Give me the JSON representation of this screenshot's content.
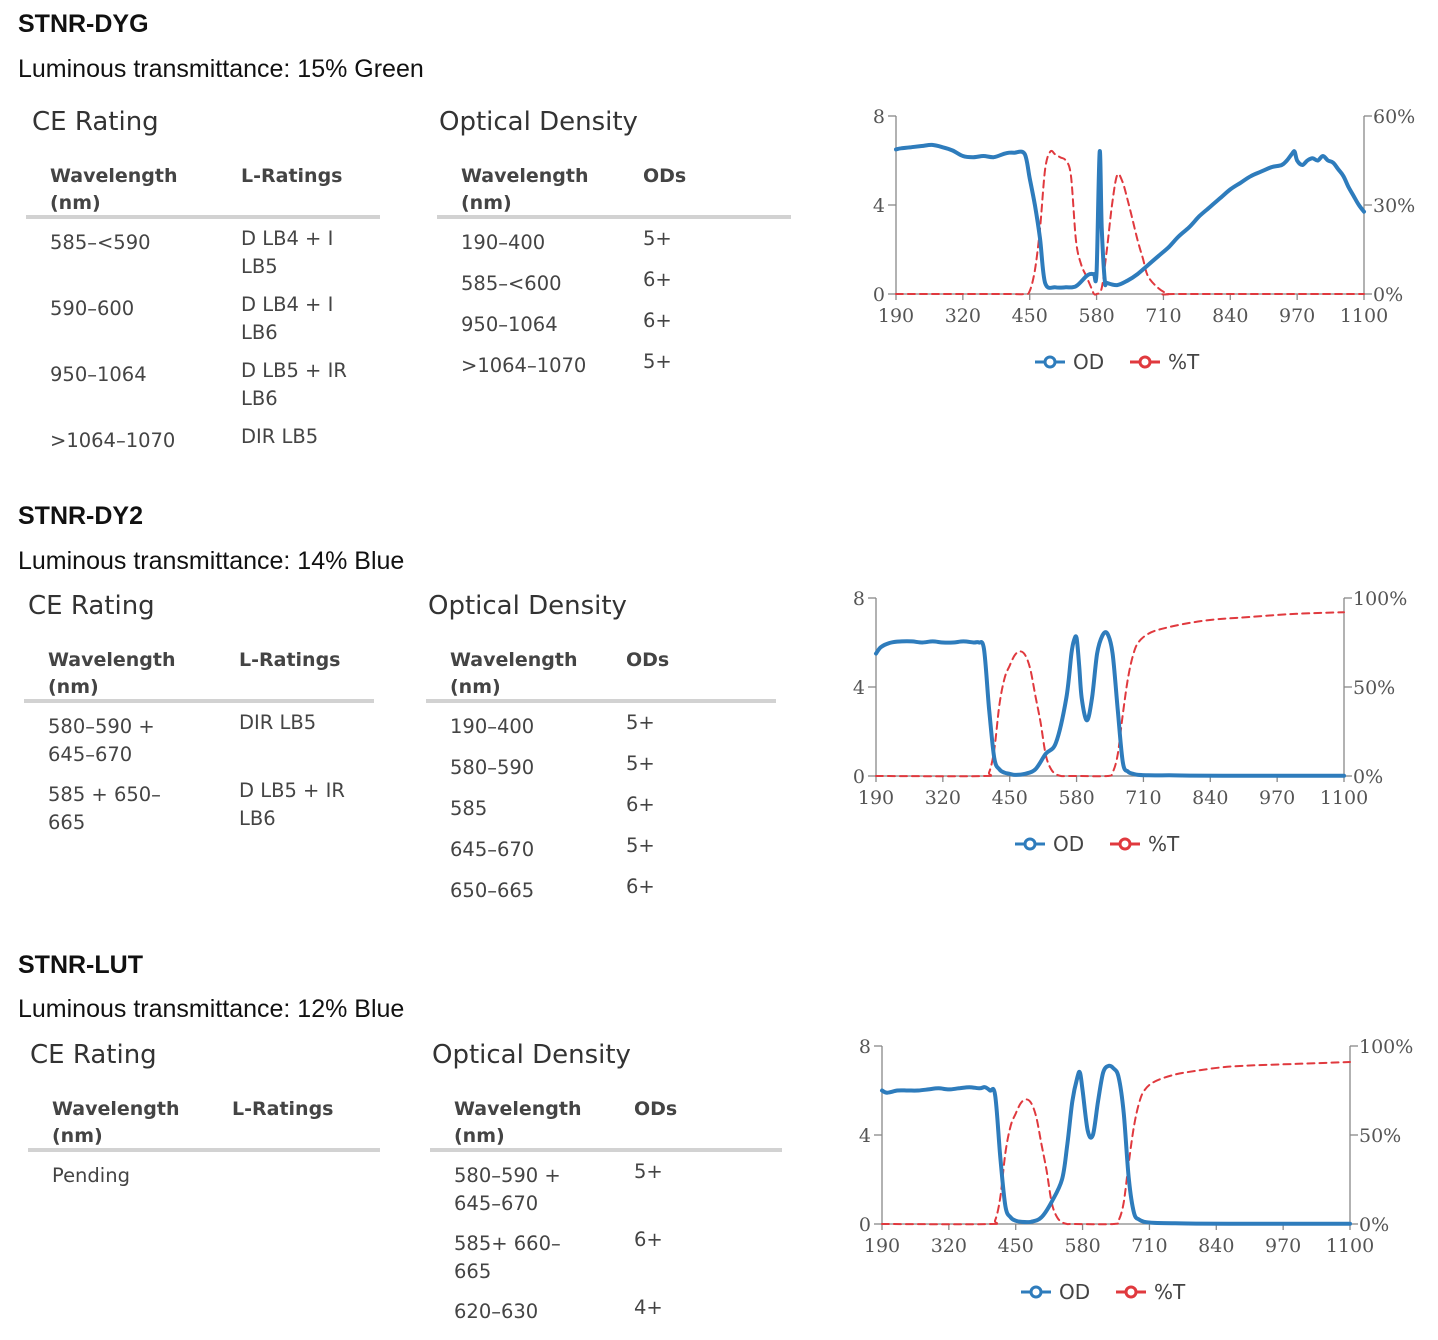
{
  "products": [
    {
      "name": "STNR-DYG",
      "transmittance": "Luminous transmittance: 15% Green",
      "ce": {
        "title": "CE Rating",
        "headers": [
          "Wavelength\n(nm)",
          "L-Ratings"
        ],
        "rows": [
          [
            "585–<590",
            "D LB4 + I\nLB5"
          ],
          [
            "590–600",
            "D LB4 + I\nLB6"
          ],
          [
            "950–1064",
            "D LB5 + IR\nLB6"
          ],
          [
            ">1064–1070",
            "DIR LB5"
          ]
        ]
      },
      "od": {
        "title": "Optical Density",
        "headers": [
          "Wavelength\n(nm)",
          "ODs"
        ],
        "rows": [
          [
            "190–400",
            "5+"
          ],
          [
            "585–<600",
            "6+"
          ],
          [
            "950–1064",
            "6+"
          ],
          [
            ">1064–1070",
            "5+"
          ]
        ]
      }
    },
    {
      "name": "STNR-DY2",
      "transmittance": "Luminous transmittance: 14% Blue",
      "ce": {
        "title": "CE Rating",
        "headers": [
          "Wavelength\n(nm)",
          "L-Ratings"
        ],
        "rows": [
          [
            "580–590 +\n645–670",
            "DIR LB5"
          ],
          [
            "585 + 650–\n665",
            "D LB5 + IR\nLB6"
          ]
        ]
      },
      "od": {
        "title": "Optical Density",
        "headers": [
          "Wavelength\n(nm)",
          "ODs"
        ],
        "rows": [
          [
            "190–400",
            "5+"
          ],
          [
            "580–590",
            "5+"
          ],
          [
            "585",
            "6+"
          ],
          [
            "645–670",
            "5+"
          ],
          [
            "650–665",
            "6+"
          ]
        ]
      }
    },
    {
      "name": "STNR-LUT",
      "transmittance": "Luminous transmittance: 12% Blue",
      "ce": {
        "title": "CE Rating",
        "headers": [
          "Wavelength\n(nm)",
          "L-Ratings"
        ],
        "rows": [
          [
            "Pending",
            ""
          ]
        ]
      },
      "od": {
        "title": "Optical Density",
        "headers": [
          "Wavelength\n(nm)",
          "ODs"
        ],
        "rows": [
          [
            "580–590 +\n645–670",
            "5+"
          ],
          [
            "585+ 660–\n665",
            "6+"
          ],
          [
            "620–630",
            "4+"
          ]
        ]
      }
    }
  ],
  "colors": {
    "od": "#2e7cbc",
    "t": "#e0393e",
    "axis": "#888888"
  },
  "chart_data": [
    {
      "type": "line",
      "xlim": [
        190,
        1100
      ],
      "xticks": [
        190,
        320,
        450,
        580,
        710,
        840,
        970,
        1100
      ],
      "y_left": {
        "lim": [
          0,
          8
        ],
        "ticks": [
          "0",
          "4",
          "8"
        ]
      },
      "y_right": {
        "lim": [
          0,
          60
        ],
        "ticks": [
          "0%",
          "30%",
          "60%"
        ]
      },
      "legend": [
        "OD",
        "%T"
      ],
      "legend_position": "bottom",
      "series": [
        {
          "name": "OD",
          "axis": "left",
          "style": "solid",
          "x": [
            190,
            200,
            220,
            240,
            260,
            280,
            300,
            320,
            340,
            360,
            380,
            400,
            410,
            420,
            440,
            450,
            460,
            470,
            480,
            500,
            520,
            540,
            560,
            568,
            575,
            580,
            586,
            590,
            596,
            600,
            620,
            640,
            660,
            680,
            700,
            720,
            740,
            760,
            780,
            800,
            820,
            840,
            860,
            880,
            900,
            920,
            940,
            950,
            960,
            965,
            970,
            980,
            990,
            1000,
            1010,
            1020,
            1030,
            1040,
            1050,
            1060,
            1070,
            1080,
            1090,
            1100
          ],
          "y": [
            6.5,
            6.55,
            6.6,
            6.65,
            6.7,
            6.6,
            6.45,
            6.2,
            6.15,
            6.2,
            6.15,
            6.3,
            6.35,
            6.35,
            6.3,
            5.2,
            4.0,
            2.5,
            0.5,
            0.3,
            0.3,
            0.35,
            0.8,
            0.9,
            0.9,
            1.0,
            6.4,
            3.0,
            0.6,
            0.5,
            0.4,
            0.6,
            0.9,
            1.3,
            1.7,
            2.1,
            2.6,
            3.0,
            3.5,
            3.9,
            4.3,
            4.7,
            5.0,
            5.3,
            5.5,
            5.7,
            5.8,
            6.0,
            6.3,
            6.4,
            6.0,
            5.8,
            6.0,
            6.1,
            6.0,
            6.2,
            6.0,
            5.9,
            5.6,
            5.3,
            4.8,
            4.4,
            4.0,
            3.7
          ]
        },
        {
          "name": "%T",
          "axis": "right",
          "style": "dashed",
          "x": [
            190,
            400,
            440,
            450,
            460,
            470,
            480,
            490,
            500,
            510,
            520,
            530,
            540,
            550,
            560,
            570,
            575,
            580,
            590,
            600,
            610,
            620,
            630,
            640,
            650,
            660,
            670,
            680,
            700,
            720,
            740,
            1100
          ],
          "y": [
            0,
            0,
            0,
            1,
            8,
            22,
            42,
            48,
            47,
            46,
            45,
            40,
            18,
            10,
            6,
            2,
            0,
            0,
            2,
            15,
            30,
            40,
            38,
            32,
            25,
            18,
            12,
            6,
            2,
            0,
            0,
            0
          ]
        }
      ]
    },
    {
      "type": "line",
      "xlim": [
        190,
        1100
      ],
      "xticks": [
        190,
        320,
        450,
        580,
        710,
        840,
        970,
        1100
      ],
      "y_left": {
        "lim": [
          0,
          8
        ],
        "ticks": [
          "0",
          "4",
          "8"
        ]
      },
      "y_right": {
        "lim": [
          0,
          100
        ],
        "ticks": [
          "0%",
          "50%",
          "100%"
        ]
      },
      "legend": [
        "OD",
        "%T"
      ],
      "legend_position": "bottom",
      "series": [
        {
          "name": "OD",
          "axis": "left",
          "style": "solid",
          "x": [
            190,
            200,
            220,
            240,
            260,
            280,
            300,
            320,
            340,
            360,
            380,
            390,
            400,
            410,
            420,
            430,
            440,
            450,
            460,
            480,
            500,
            520,
            540,
            560,
            570,
            575,
            580,
            585,
            590,
            600,
            610,
            620,
            630,
            640,
            650,
            660,
            670,
            680,
            690,
            700,
            720,
            760,
            800,
            900,
            1000,
            1100
          ],
          "y": [
            5.5,
            5.8,
            6.0,
            6.05,
            6.05,
            6.0,
            6.05,
            6.0,
            6.0,
            6.05,
            6.0,
            6.0,
            5.7,
            3.0,
            0.8,
            0.3,
            0.15,
            0.1,
            0.05,
            0.1,
            0.3,
            1.0,
            1.5,
            3.5,
            5.5,
            6.1,
            6.2,
            5.0,
            3.5,
            2.5,
            3.5,
            5.5,
            6.3,
            6.4,
            5.5,
            3.0,
            0.6,
            0.2,
            0.1,
            0.05,
            0.03,
            0.03,
            0.02,
            0.01,
            0.01,
            0.01
          ]
        },
        {
          "name": "%T",
          "axis": "right",
          "style": "dashed",
          "x": [
            190,
            400,
            410,
            420,
            430,
            440,
            450,
            460,
            470,
            480,
            490,
            500,
            510,
            520,
            530,
            540,
            550,
            560,
            580,
            640,
            650,
            660,
            670,
            680,
            690,
            700,
            720,
            750,
            800,
            850,
            900,
            1000,
            1100
          ],
          "y": [
            0,
            0,
            2,
            15,
            40,
            55,
            62,
            68,
            70,
            68,
            60,
            45,
            30,
            12,
            4,
            1,
            0,
            0,
            0,
            0,
            2,
            12,
            35,
            55,
            68,
            75,
            80,
            83,
            86,
            88,
            89,
            91,
            92
          ]
        }
      ]
    },
    {
      "type": "line",
      "xlim": [
        190,
        1100
      ],
      "xticks": [
        190,
        320,
        450,
        580,
        710,
        840,
        970,
        1100
      ],
      "y_left": {
        "lim": [
          0,
          8
        ],
        "ticks": [
          "0",
          "4",
          "8"
        ]
      },
      "y_right": {
        "lim": [
          0,
          100
        ],
        "ticks": [
          "0%",
          "50%",
          "100%"
        ]
      },
      "legend": [
        "OD",
        "%T"
      ],
      "legend_position": "bottom",
      "series": [
        {
          "name": "OD",
          "axis": "left",
          "style": "solid",
          "x": [
            190,
            200,
            220,
            240,
            260,
            280,
            300,
            320,
            340,
            360,
            380,
            390,
            400,
            410,
            420,
            430,
            440,
            450,
            460,
            480,
            500,
            520,
            540,
            550,
            560,
            570,
            575,
            580,
            590,
            600,
            610,
            620,
            630,
            640,
            650,
            660,
            670,
            680,
            690,
            700,
            720,
            760,
            800,
            900,
            1000,
            1100
          ],
          "y": [
            6.0,
            5.9,
            6.0,
            6.0,
            6.0,
            6.05,
            6.1,
            6.05,
            6.1,
            6.15,
            6.1,
            6.15,
            6.0,
            5.8,
            3.0,
            0.8,
            0.3,
            0.15,
            0.1,
            0.1,
            0.3,
            1.0,
            2.0,
            3.5,
            5.5,
            6.6,
            6.8,
            6.0,
            4.2,
            4.0,
            5.5,
            6.8,
            7.1,
            7.0,
            6.6,
            5.0,
            2.0,
            0.5,
            0.2,
            0.1,
            0.05,
            0.03,
            0.02,
            0.01,
            0.01,
            0.01
          ]
        },
        {
          "name": "%T",
          "axis": "right",
          "style": "dashed",
          "x": [
            190,
            400,
            410,
            420,
            430,
            440,
            450,
            460,
            470,
            480,
            490,
            500,
            510,
            520,
            530,
            540,
            550,
            560,
            640,
            650,
            660,
            670,
            680,
            690,
            700,
            720,
            760,
            800,
            850,
            900,
            1000,
            1100
          ],
          "y": [
            0,
            0,
            2,
            15,
            40,
            55,
            62,
            68,
            70,
            68,
            60,
            45,
            30,
            12,
            4,
            1,
            0,
            0,
            0,
            2,
            12,
            35,
            55,
            68,
            75,
            80,
            84,
            86,
            88,
            89,
            90,
            91
          ]
        }
      ]
    }
  ]
}
